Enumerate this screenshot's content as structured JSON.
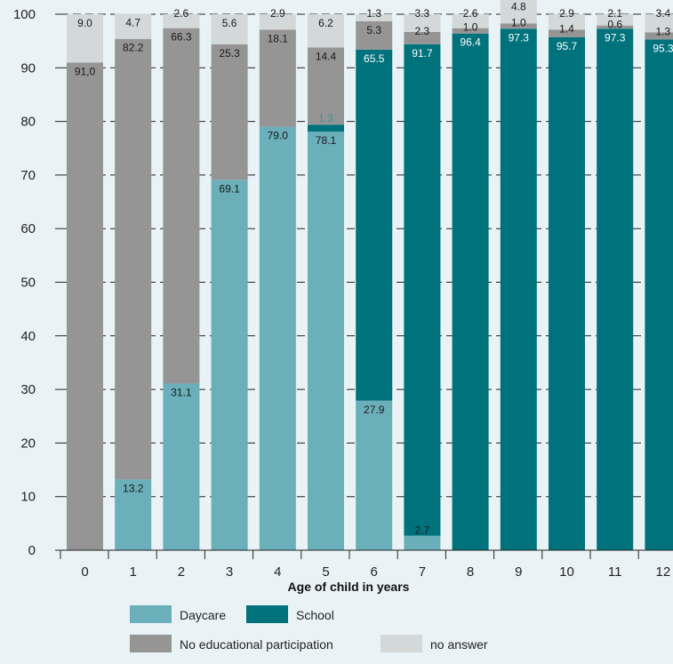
{
  "chart_data": {
    "type": "bar",
    "stacked": true,
    "title": "",
    "xlabel": "Age of child in years",
    "ylabel": "",
    "ylim": [
      0,
      100
    ],
    "yticks": [
      0,
      10,
      20,
      30,
      40,
      50,
      60,
      70,
      80,
      90,
      100
    ],
    "grid": true,
    "legend_position": "bottom",
    "categories": [
      "0",
      "1",
      "2",
      "3",
      "4",
      "5",
      "6",
      "7",
      "8",
      "9",
      "10",
      "11",
      "12"
    ],
    "series": [
      {
        "name": "Daycare",
        "color": "#6aafb9",
        "label_color": "#1a1a1a",
        "values": [
          0,
          13.2,
          31.1,
          69.1,
          79.0,
          78.1,
          27.9,
          2.7,
          0,
          0,
          0,
          0,
          0
        ],
        "labels": [
          "",
          "13.2",
          "31.1",
          "69.1",
          "79.0",
          "78.1",
          "27.9",
          "2.7",
          "",
          "",
          "",
          "",
          ""
        ]
      },
      {
        "name": "School",
        "color": "#00727b",
        "label_color": "#ffffff",
        "values": [
          0,
          0,
          0,
          0,
          0,
          1.3,
          65.5,
          91.7,
          96.4,
          97.3,
          95.7,
          97.3,
          95.3
        ],
        "labels": [
          "",
          "",
          "",
          "",
          "",
          "1.3",
          "65.5",
          "91.7",
          "96.4",
          "97.3",
          "95.7",
          "97.3",
          "95.3"
        ]
      },
      {
        "name": "No educational participation",
        "color": "#959595",
        "label_color": "#1a1a1a",
        "values": [
          91.0,
          82.2,
          66.3,
          25.3,
          18.1,
          14.4,
          5.3,
          2.3,
          1.0,
          1.0,
          1.4,
          0.6,
          1.3
        ],
        "labels": [
          "91,0",
          "82.2",
          "66.3",
          "25.3",
          "18.1",
          "14.4",
          "5.3",
          "2.3",
          "1.0",
          "1.0",
          "1.4",
          "0.6",
          "1.3"
        ]
      },
      {
        "name": "no answer",
        "color": "#d3d8d9",
        "label_color": "#1a1a1a",
        "values": [
          9.0,
          4.7,
          2.6,
          5.6,
          2.9,
          6.2,
          1.3,
          3.3,
          2.6,
          4.8,
          2.9,
          2.1,
          3.4
        ],
        "labels": [
          "9.0",
          "4.7",
          "2.6",
          "5.6",
          "2.9",
          "6.2",
          "1.3",
          "3.3",
          "2.6",
          "4.8",
          "2.9",
          "2.1",
          "3.4"
        ]
      }
    ]
  }
}
